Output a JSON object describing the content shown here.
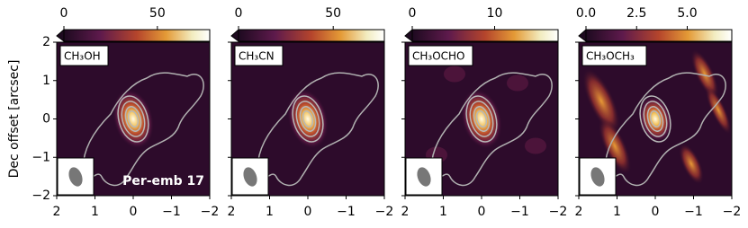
{
  "chart_data": [
    {
      "type": "image",
      "label": "CH₃OH",
      "annotation": "Per-emb 17",
      "ylabel": "Dec offset [arcsec]",
      "clim": [
        0,
        78
      ],
      "cticks": [
        0,
        50
      ],
      "xlim": [
        2,
        -2
      ],
      "xticks": [
        2,
        1,
        0,
        {
          "value": -1,
          "label": "−1"
        },
        {
          "value": -2,
          "label": "−2"
        }
      ],
      "ylim": [
        -2,
        2
      ],
      "yticks": [
        2,
        1,
        0,
        {
          "value": -1,
          "label": "−1"
        },
        {
          "value": -2,
          "label": "−2"
        }
      ]
    },
    {
      "type": "image",
      "label": "CH₃CN",
      "clim": [
        0,
        77
      ],
      "cticks": [
        0,
        50
      ],
      "xlim": [
        2,
        -2
      ],
      "xticks": [
        2,
        1,
        0,
        {
          "value": -1,
          "label": "−1"
        },
        {
          "value": -2,
          "label": "−2"
        }
      ]
    },
    {
      "type": "image",
      "label": "CH₃OCHO",
      "clim": [
        0,
        17.7
      ],
      "cticks": [
        0,
        10
      ],
      "xlim": [
        2,
        -2
      ],
      "xticks": [
        2,
        1,
        0,
        {
          "value": -1,
          "label": "−1"
        },
        {
          "value": -2,
          "label": "−2"
        }
      ]
    },
    {
      "type": "image",
      "label": "CH₃OCH₃",
      "clim": [
        0,
        7.2
      ],
      "cticks": [
        {
          "value": 0,
          "label": "0.0"
        },
        2.5,
        {
          "value": 5,
          "label": "5.0"
        }
      ],
      "xlim": [
        2,
        -2
      ],
      "xticks": [
        2,
        1,
        0,
        {
          "value": -1,
          "label": "−1"
        },
        {
          "value": -2,
          "label": "−2"
        }
      ]
    }
  ]
}
